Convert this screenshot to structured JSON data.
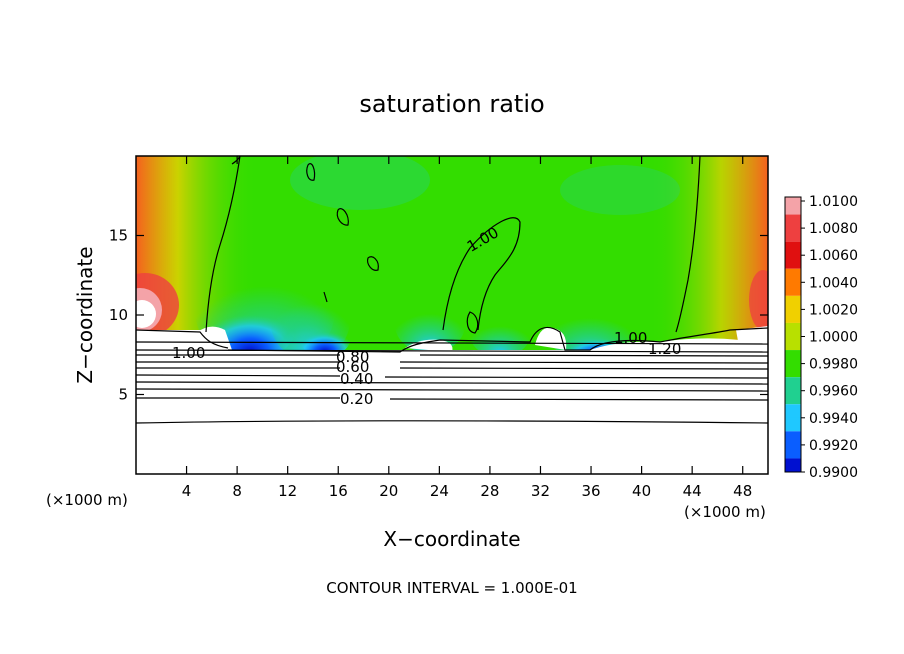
{
  "chart_data": {
    "type": "heatmap",
    "title": "saturation ratio",
    "xlabel": "X−coordinate",
    "ylabel": "Z−coordinate",
    "x_unit_left": "(×1000 m)",
    "x_unit_right": "(×1000 m)",
    "xlim": [
      0,
      50
    ],
    "ylim": [
      0,
      20
    ],
    "x_ticks": [
      4,
      8,
      12,
      16,
      20,
      24,
      28,
      32,
      36,
      40,
      44,
      48
    ],
    "y_ticks": [
      5,
      10,
      15
    ],
    "colorbar": {
      "labels": [
        "1.0100",
        "1.0080",
        "1.0060",
        "1.0040",
        "1.0020",
        "1.0000",
        "0.9980",
        "0.9960",
        "0.9940",
        "0.9920",
        "0.9900"
      ],
      "colors": [
        "#f4a3a8",
        "#ee4040",
        "#e01010",
        "#ff7a00",
        "#f0d000",
        "#b8e000",
        "#33dd00",
        "#20d090",
        "#1fc8ff",
        "#0a5eff",
        "#0010d0",
        "#5a00b0"
      ]
    },
    "contour_labels": [
      "1.00",
      "1.00",
      "1.00",
      "1.20",
      "0.80",
      "0.60",
      "0.40",
      "0.20"
    ],
    "footer": "CONTOUR INTERVAL = 1.000E-01"
  }
}
